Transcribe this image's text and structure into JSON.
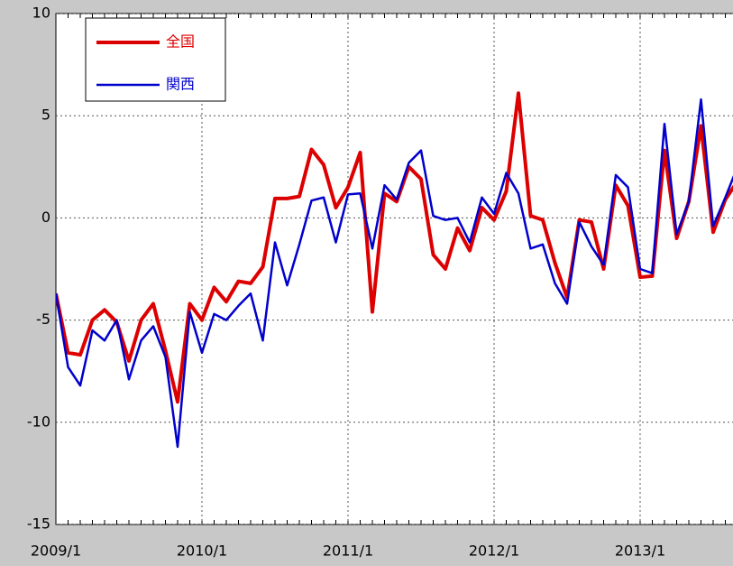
{
  "chart_data": {
    "type": "line",
    "categories": [
      "2009/1",
      null,
      null,
      null,
      null,
      null,
      null,
      null,
      null,
      null,
      null,
      null,
      "2010/1",
      null,
      null,
      null,
      null,
      null,
      null,
      null,
      null,
      null,
      null,
      null,
      "2011/1",
      null,
      null,
      null,
      null,
      null,
      null,
      null,
      null,
      null,
      null,
      null,
      "2012/1",
      null,
      null,
      null,
      null,
      null,
      null,
      null,
      null,
      null,
      null,
      null,
      "2013/1",
      null,
      null,
      null,
      null,
      null,
      null,
      null,
      null
    ],
    "series": [
      {
        "name": "全国",
        "color": "#dd0000",
        "values": [
          -3.7,
          -6.6,
          -6.7,
          -5.0,
          -4.5,
          -5.1,
          -7.0,
          -5.0,
          -4.2,
          -6.5,
          -9.0,
          -4.2,
          -5.0,
          -3.4,
          -4.1,
          -3.1,
          -3.2,
          -2.4,
          0.95,
          0.95,
          1.05,
          3.35,
          2.6,
          0.5,
          1.5,
          3.2,
          -4.6,
          1.2,
          0.8,
          2.5,
          1.9,
          -1.8,
          -2.5,
          -0.5,
          -1.6,
          0.5,
          -0.1,
          1.3,
          6.1,
          0.1,
          -0.1,
          -2.2,
          -3.9,
          -0.1,
          -0.2,
          -2.5,
          1.6,
          0.6,
          -2.9,
          -2.85,
          3.3,
          -1.0,
          0.8,
          4.5,
          -0.7,
          0.9,
          1.8
        ]
      },
      {
        "name": "関西",
        "color": "#0000cc",
        "values": [
          -3.7,
          -7.3,
          -8.2,
          -5.5,
          -6.0,
          -5.0,
          -7.9,
          -6.0,
          -5.3,
          -6.8,
          -11.2,
          -4.6,
          -6.6,
          -4.7,
          -5.0,
          -4.3,
          -3.7,
          -6.0,
          -1.2,
          -3.3,
          -1.3,
          0.85,
          1.0,
          -1.2,
          1.15,
          1.2,
          -1.5,
          1.6,
          0.9,
          2.7,
          3.3,
          0.1,
          -0.1,
          0.0,
          -1.2,
          1.0,
          0.2,
          2.2,
          1.2,
          -1.5,
          -1.3,
          -3.2,
          -4.2,
          -0.2,
          -1.4,
          -2.3,
          2.1,
          1.5,
          -2.5,
          -2.7,
          4.6,
          -0.8,
          0.8,
          5.8,
          -0.4,
          1.0,
          2.5
        ]
      }
    ],
    "ylim": [
      -15,
      10
    ],
    "yticks": [
      -15,
      -10,
      -5,
      0,
      5,
      10
    ],
    "grid": true,
    "legend": "upper left"
  }
}
